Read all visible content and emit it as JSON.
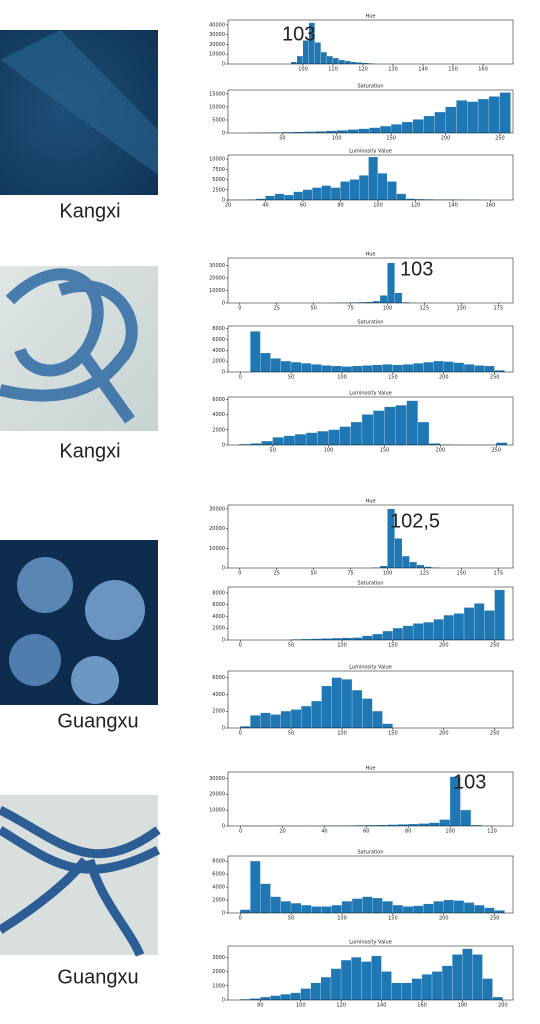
{
  "panels": [
    {
      "label": "Kangxi"
    },
    {
      "label": "Kangxi"
    },
    {
      "label": "Guangxu"
    },
    {
      "label": "Guangxu"
    }
  ],
  "chart_data": [
    {
      "type": "histogram",
      "title": "Hue",
      "annotation": "103",
      "color": "#1f77b4",
      "bins": [
        96,
        98,
        100,
        102,
        104,
        106,
        108,
        110,
        112,
        114,
        116,
        118,
        120,
        122,
        124
      ],
      "values": [
        2000,
        8000,
        24000,
        42000,
        22000,
        12000,
        8000,
        6000,
        4000,
        3000,
        2000,
        1500,
        1000,
        500
      ],
      "xlim": [
        75,
        170
      ],
      "xticks": [
        100,
        110,
        120,
        130,
        140,
        150,
        160
      ],
      "ylim": [
        0,
        45000
      ],
      "yticks": [
        0,
        10000,
        20000,
        30000,
        40000
      ]
    },
    {
      "type": "histogram",
      "title": "Saturation",
      "color": "#1f77b4",
      "bins": [
        20,
        30,
        40,
        50,
        60,
        70,
        80,
        90,
        100,
        110,
        120,
        130,
        140,
        150,
        160,
        170,
        180,
        190,
        200,
        210,
        220,
        230,
        240,
        250,
        260
      ],
      "values": [
        100,
        150,
        200,
        300,
        400,
        500,
        600,
        800,
        1000,
        1300,
        1600,
        2000,
        2600,
        3300,
        4200,
        5200,
        6500,
        8000,
        10000,
        12500,
        12000,
        13000,
        14000,
        15500
      ],
      "xlim": [
        0,
        262
      ],
      "xticks": [
        50,
        100,
        150,
        200,
        250
      ],
      "ylim": [
        0,
        16500
      ],
      "yticks": [
        0,
        5000,
        10000,
        15000
      ]
    },
    {
      "type": "histogram",
      "title": "Luminosity Value",
      "color": "#1f77b4",
      "bins": [
        20,
        25,
        30,
        35,
        40,
        45,
        50,
        55,
        60,
        65,
        70,
        75,
        80,
        85,
        90,
        95,
        100,
        105,
        110,
        115,
        120,
        125,
        130,
        135,
        140,
        145,
        150,
        155,
        160,
        165,
        170
      ],
      "values": [
        50,
        50,
        100,
        300,
        1000,
        1500,
        1200,
        2000,
        2500,
        3000,
        3500,
        3000,
        4500,
        5000,
        6000,
        10500,
        6500,
        4500,
        1500,
        300,
        200,
        150,
        100,
        100,
        100,
        50,
        50,
        0,
        0,
        0
      ],
      "xlim": [
        20,
        172
      ],
      "xticks": [
        20,
        40,
        60,
        80,
        100,
        120,
        140,
        160
      ],
      "ylim": [
        0,
        11000
      ],
      "yticks": [
        0,
        2500,
        5000,
        7500,
        10000
      ]
    },
    {
      "type": "histogram",
      "title": "Hue",
      "annotation": "103",
      "color": "#1f77b4",
      "bins": [
        60,
        65,
        70,
        75,
        80,
        85,
        90,
        95,
        100,
        105,
        110,
        115,
        120
      ],
      "values": [
        100,
        200,
        300,
        400,
        600,
        800,
        1500,
        6000,
        32000,
        8000,
        500,
        100
      ],
      "xlim": [
        -8,
        185
      ],
      "xticks": [
        0,
        25,
        50,
        75,
        100,
        125,
        150,
        175
      ],
      "ylim": [
        0,
        36000
      ],
      "yticks": [
        0,
        10000,
        20000,
        30000
      ]
    },
    {
      "type": "histogram",
      "title": "Saturation",
      "color": "#1f77b4",
      "bins": [
        0,
        10,
        20,
        30,
        40,
        50,
        60,
        70,
        80,
        90,
        100,
        110,
        120,
        130,
        140,
        150,
        160,
        170,
        180,
        190,
        200,
        210,
        220,
        230,
        240,
        250,
        260
      ],
      "values": [
        0,
        7500,
        3500,
        2500,
        2000,
        1800,
        1600,
        1400,
        1200,
        1100,
        1000,
        1100,
        1200,
        1300,
        1400,
        1300,
        1400,
        1600,
        1800,
        2000,
        1900,
        1700,
        1400,
        1200,
        1100,
        300
      ],
      "xlim": [
        -12,
        268
      ],
      "xticks": [
        0,
        50,
        100,
        150,
        200,
        250
      ],
      "ylim": [
        0,
        8500
      ],
      "yticks": [
        0,
        2000,
        4000,
        6000,
        8000
      ]
    },
    {
      "type": "histogram",
      "title": "Luminosity Value",
      "color": "#1f77b4",
      "bins": [
        20,
        30,
        40,
        50,
        60,
        70,
        80,
        90,
        100,
        110,
        120,
        130,
        140,
        150,
        160,
        170,
        180,
        190,
        200,
        210,
        220,
        230,
        240,
        250,
        260
      ],
      "values": [
        100,
        200,
        500,
        1000,
        1200,
        1400,
        1600,
        1800,
        2000,
        2400,
        3000,
        4000,
        4500,
        5000,
        5200,
        5800,
        3000,
        200,
        50,
        20,
        10,
        10,
        10,
        300
      ],
      "xlim": [
        10,
        265
      ],
      "xticks": [
        50,
        100,
        150,
        200,
        250
      ],
      "ylim": [
        0,
        6300
      ],
      "yticks": [
        0,
        2000,
        4000,
        6000
      ]
    },
    {
      "type": "histogram",
      "title": "Hue",
      "annotation": "102,5",
      "color": "#1f77b4",
      "bins": [
        90,
        95,
        100,
        105,
        110,
        115,
        120,
        125,
        130,
        135
      ],
      "values": [
        200,
        1000,
        30000,
        15000,
        6000,
        3000,
        1500,
        600,
        200
      ],
      "xlim": [
        -8,
        185
      ],
      "xticks": [
        0,
        25,
        50,
        75,
        100,
        125,
        150,
        175
      ],
      "ylim": [
        0,
        32000
      ],
      "yticks": [
        0,
        10000,
        20000,
        30000
      ]
    },
    {
      "type": "histogram",
      "title": "Saturation",
      "color": "#1f77b4",
      "bins": [
        50,
        60,
        70,
        80,
        90,
        100,
        110,
        120,
        130,
        140,
        150,
        160,
        170,
        180,
        190,
        200,
        210,
        220,
        230,
        240,
        250,
        260
      ],
      "values": [
        100,
        150,
        200,
        250,
        300,
        350,
        400,
        700,
        1000,
        1500,
        2000,
        2400,
        2800,
        3000,
        3500,
        4200,
        4500,
        5500,
        6200,
        5000,
        8500
      ],
      "xlim": [
        -12,
        268
      ],
      "xticks": [
        0,
        50,
        100,
        150,
        200,
        250
      ],
      "ylim": [
        0,
        9000
      ],
      "yticks": [
        0,
        2000,
        4000,
        6000,
        8000
      ]
    },
    {
      "type": "histogram",
      "title": "Luminosity Value",
      "color": "#1f77b4",
      "bins": [
        0,
        10,
        20,
        30,
        40,
        50,
        60,
        70,
        80,
        90,
        100,
        110,
        120,
        130,
        140,
        150
      ],
      "values": [
        200,
        1500,
        1800,
        1600,
        2000,
        2200,
        2600,
        3200,
        5000,
        6000,
        5800,
        4500,
        3500,
        2000,
        500
      ],
      "xlim": [
        -12,
        268
      ],
      "xticks": [
        0,
        50,
        100,
        150,
        200,
        250
      ],
      "ylim": [
        0,
        6800
      ],
      "yticks": [
        0,
        2000,
        4000,
        6000
      ]
    },
    {
      "type": "histogram",
      "title": "Hue",
      "annotation": "103",
      "color": "#1f77b4",
      "bins": [
        0,
        5,
        10,
        15,
        20,
        25,
        30,
        35,
        40,
        45,
        50,
        55,
        60,
        65,
        70,
        75,
        80,
        85,
        90,
        95,
        100,
        105,
        110,
        115,
        120
      ],
      "values": [
        100,
        100,
        100,
        100,
        100,
        100,
        100,
        150,
        200,
        200,
        300,
        400,
        500,
        600,
        800,
        1000,
        1200,
        1500,
        2000,
        4000,
        31000,
        10000,
        500,
        100
      ],
      "xlim": [
        -6,
        130
      ],
      "xticks": [
        0,
        20,
        40,
        60,
        80,
        100,
        120
      ],
      "ylim": [
        0,
        34000
      ],
      "yticks": [
        0,
        10000,
        20000,
        30000
      ]
    },
    {
      "type": "histogram",
      "title": "Saturation",
      "color": "#1f77b4",
      "bins": [
        0,
        10,
        20,
        30,
        40,
        50,
        60,
        70,
        80,
        90,
        100,
        110,
        120,
        130,
        140,
        150,
        160,
        170,
        180,
        190,
        200,
        210,
        220,
        230,
        240,
        250,
        260
      ],
      "values": [
        500,
        8000,
        4500,
        2500,
        1800,
        1500,
        1200,
        1000,
        1000,
        1200,
        1800,
        2200,
        2500,
        2300,
        1800,
        1200,
        1000,
        1100,
        1400,
        1800,
        2000,
        1900,
        1600,
        1200,
        800,
        400
      ],
      "xlim": [
        -12,
        268
      ],
      "xticks": [
        0,
        50,
        100,
        150,
        200,
        250
      ],
      "ylim": [
        0,
        8800
      ],
      "yticks": [
        0,
        2000,
        4000,
        6000,
        8000
      ]
    },
    {
      "type": "histogram",
      "title": "Luminosity Value",
      "color": "#1f77b4",
      "bins": [
        70,
        75,
        80,
        85,
        90,
        95,
        100,
        105,
        110,
        115,
        120,
        125,
        130,
        135,
        140,
        145,
        150,
        155,
        160,
        165,
        170,
        175,
        180,
        185,
        190,
        195,
        200
      ],
      "values": [
        50,
        100,
        200,
        300,
        400,
        500,
        800,
        1200,
        1600,
        2200,
        2800,
        3000,
        2700,
        3100,
        2000,
        1200,
        1200,
        1500,
        1800,
        2000,
        2400,
        3200,
        3600,
        3200,
        1500,
        200
      ],
      "xlim": [
        64,
        205
      ],
      "xticks": [
        80,
        100,
        120,
        140,
        160,
        180,
        200
      ],
      "ylim": [
        0,
        3800
      ],
      "yticks": [
        0,
        1000,
        2000,
        3000
      ]
    }
  ]
}
